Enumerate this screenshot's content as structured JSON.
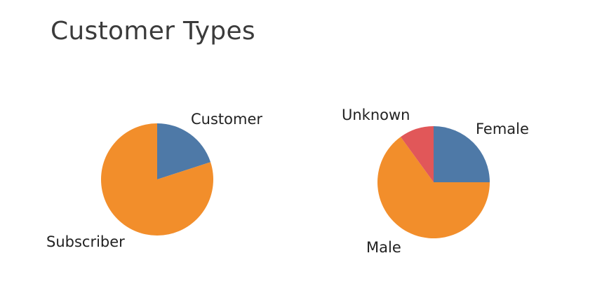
{
  "page": {
    "title": "Customer Types"
  },
  "chart_data": [
    {
      "type": "pie",
      "title": "",
      "categories": [
        "Customer",
        "Subscriber"
      ],
      "values": [
        20,
        80
      ],
      "colors": [
        "#4e79a7",
        "#f28e2b"
      ],
      "start_angle_deg": 0,
      "direction": "clockwise-from-top"
    },
    {
      "type": "pie",
      "title": "",
      "categories": [
        "Female",
        "Male",
        "Unknown"
      ],
      "values": [
        25,
        65,
        10
      ],
      "colors": [
        "#4e79a7",
        "#f28e2b",
        "#e15759"
      ],
      "start_angle_deg": 0,
      "direction": "clockwise-from-top"
    }
  ]
}
